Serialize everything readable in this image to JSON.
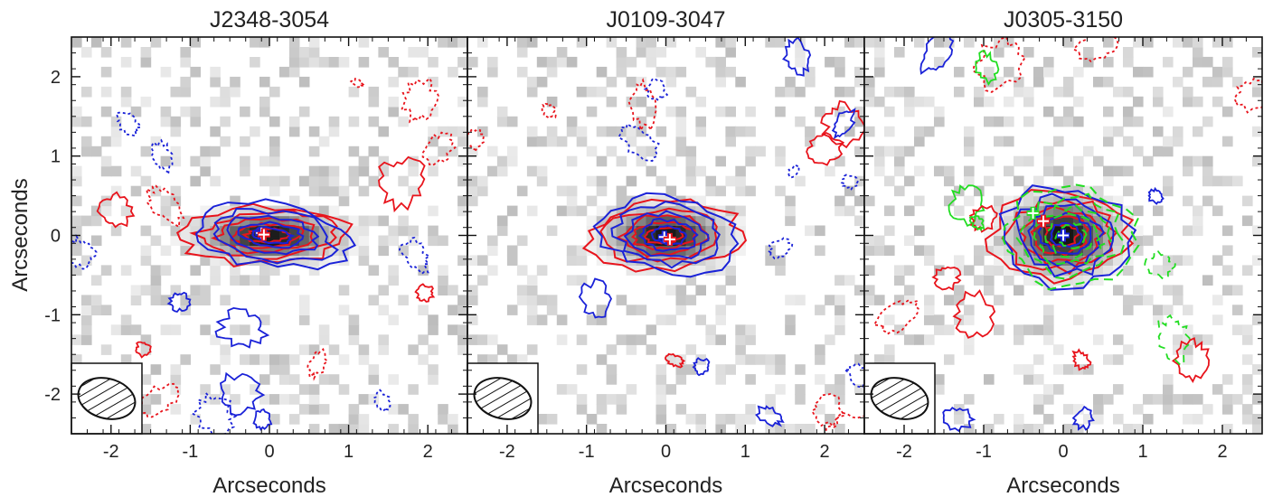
{
  "chart_data": {
    "type": "heatmap",
    "xlabel": "Arcseconds",
    "ylabel": "Arcseconds",
    "xlim": [
      -2.5,
      2.5
    ],
    "ylim": [
      -2.5,
      2.5
    ],
    "xticks": [
      -2,
      -1,
      0,
      1,
      2
    ],
    "yticks": [
      -2,
      -1,
      0,
      1,
      2
    ],
    "colors": {
      "contour_a": "#e8141c",
      "contour_b": "#1a22d8",
      "contour_c": "#22dd22",
      "marker_fill": "#ffffff"
    },
    "panels": [
      {
        "title": "J2348-3054",
        "peak": [
          0.0,
          0.0
        ],
        "extent": [
          0.7,
          0.25
        ],
        "markers": [
          {
            "x": -0.1,
            "y": 0.03,
            "color": "#1a22d8"
          },
          {
            "x": -0.07,
            "y": 0.01,
            "color": "#e8141c"
          }
        ]
      },
      {
        "title": "J0109-3047",
        "peak": [
          0.0,
          0.0
        ],
        "extent": [
          0.6,
          0.3
        ],
        "markers": [
          {
            "x": -0.02,
            "y": -0.02,
            "color": "#1a22d8"
          },
          {
            "x": 0.05,
            "y": -0.05,
            "color": "#e8141c"
          }
        ]
      },
      {
        "title": "J0305-3150",
        "peak": [
          0.0,
          0.0
        ],
        "extent": [
          0.55,
          0.4
        ],
        "markers": [
          {
            "x": -0.38,
            "y": 0.28,
            "color": "#22dd22"
          },
          {
            "x": -0.25,
            "y": 0.18,
            "color": "#e8141c"
          },
          {
            "x": 0.0,
            "y": 0.0,
            "color": "#1a22d8"
          }
        ]
      }
    ]
  }
}
